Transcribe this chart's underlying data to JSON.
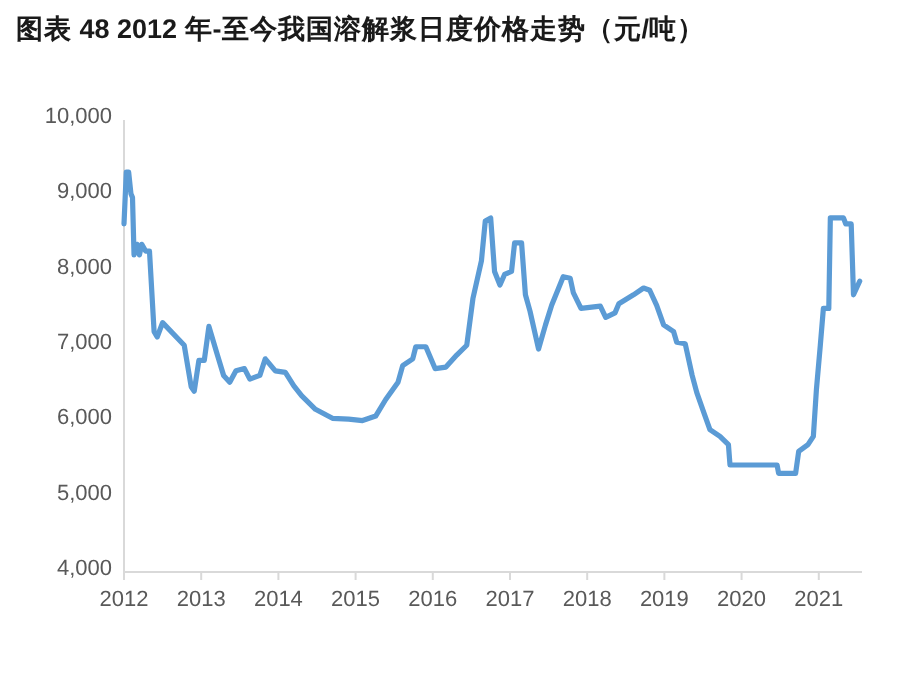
{
  "chart_data": {
    "type": "line",
    "title": "图表 48 2012 年-至今我国溶解浆日度价格走势（元/吨）",
    "series": [
      {
        "color": "#5b9bd5",
        "x": [
          2012.0,
          2012.03,
          2012.06,
          2012.09,
          2012.11,
          2012.13,
          2012.17,
          2012.2,
          2012.23,
          2012.28,
          2012.33,
          2012.39,
          2012.43,
          2012.5,
          2012.78,
          2012.87,
          2012.91,
          2012.97,
          2013.04,
          2013.1,
          2013.21,
          2013.29,
          2013.37,
          2013.45,
          2013.56,
          2013.63,
          2013.76,
          2013.83,
          2013.96,
          2014.09,
          2014.2,
          2014.3,
          2014.48,
          2014.7,
          2014.91,
          2015.09,
          2015.26,
          2015.39,
          2015.55,
          2015.61,
          2015.74,
          2015.78,
          2015.91,
          2016.03,
          2016.17,
          2016.31,
          2016.44,
          2016.52,
          2016.63,
          2016.68,
          2016.75,
          2016.8,
          2016.87,
          2016.93,
          2017.02,
          2017.06,
          2017.15,
          2017.2,
          2017.26,
          2017.37,
          2017.46,
          2017.54,
          2017.69,
          2017.78,
          2017.82,
          2017.92,
          2018.17,
          2018.24,
          2018.36,
          2018.41,
          2018.6,
          2018.73,
          2018.81,
          2018.9,
          2018.99,
          2019.12,
          2019.16,
          2019.27,
          2019.36,
          2019.42,
          2019.51,
          2019.59,
          2019.72,
          2019.83,
          2019.85,
          2020.46,
          2020.48,
          2020.7,
          2020.74,
          2020.86,
          2020.93,
          2020.97,
          2021.02,
          2021.06,
          2021.13,
          2021.15,
          2021.32,
          2021.35,
          2021.42,
          2021.45,
          2021.49,
          2021.53
        ],
        "values": [
          8620,
          9310,
          9310,
          9020,
          8970,
          8210,
          8350,
          8210,
          8350,
          8260,
          8260,
          7190,
          7120,
          7310,
          7010,
          6460,
          6400,
          6810,
          6810,
          7260,
          6880,
          6610,
          6520,
          6670,
          6700,
          6560,
          6610,
          6830,
          6670,
          6650,
          6470,
          6340,
          6160,
          6040,
          6030,
          6010,
          6070,
          6290,
          6520,
          6740,
          6830,
          6990,
          6990,
          6700,
          6720,
          6880,
          7010,
          7630,
          8130,
          8660,
          8700,
          7990,
          7810,
          7950,
          7990,
          8370,
          8370,
          7680,
          7460,
          6960,
          7280,
          7540,
          7920,
          7900,
          7710,
          7500,
          7530,
          7380,
          7440,
          7560,
          7680,
          7770,
          7740,
          7540,
          7280,
          7190,
          7050,
          7030,
          6610,
          6380,
          6120,
          5890,
          5800,
          5690,
          5420,
          5420,
          5310,
          5310,
          5600,
          5690,
          5800,
          6430,
          7010,
          7500,
          7500,
          8700,
          8700,
          8620,
          8620,
          7680,
          7770,
          7860
        ]
      }
    ],
    "xlim": [
      2012,
      2021.56
    ],
    "xticks": [
      2012,
      2013,
      2014,
      2015,
      2016,
      2017,
      2018,
      2019,
      2020,
      2021
    ],
    "ylim": [
      4000,
      10000
    ],
    "yticks": [
      {
        "value": 4000,
        "label": "4,000"
      },
      {
        "value": 5000,
        "label": "5,000"
      },
      {
        "value": 6000,
        "label": "6,000"
      },
      {
        "value": 7000,
        "label": "7,000"
      },
      {
        "value": 8000,
        "label": "8,000"
      },
      {
        "value": 9000,
        "label": "9,000"
      },
      {
        "value": 10000,
        "label": "10,000"
      }
    ],
    "grid": false,
    "marker": "none",
    "line_style": "solid"
  }
}
